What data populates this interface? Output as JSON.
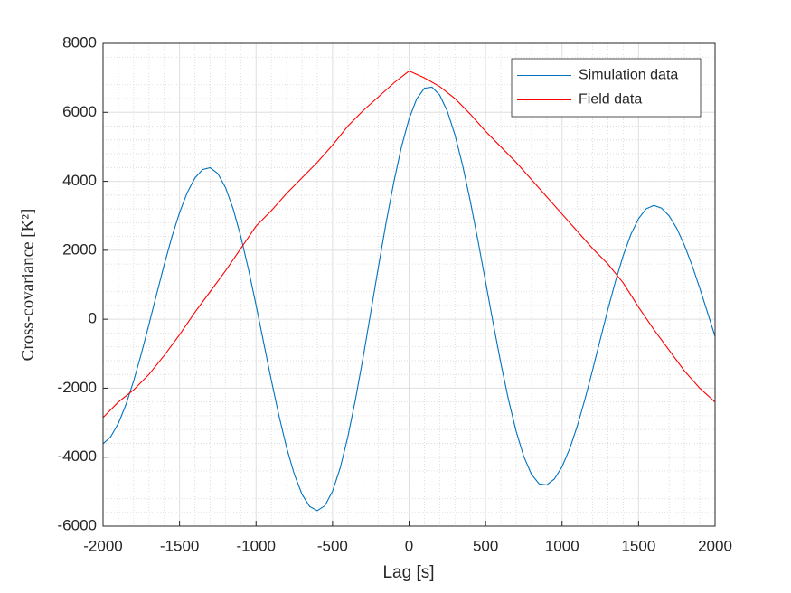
{
  "chart_data": {
    "type": "line",
    "xlabel": "Lag [s]",
    "ylabel": "Cross-covariance [K²]",
    "xlim": [
      -2000,
      2000
    ],
    "xticks": [
      -2000,
      -1500,
      -1000,
      -500,
      0,
      500,
      1000,
      1500,
      2000
    ],
    "ylim": [
      -6000,
      8000
    ],
    "yticks": [
      -6000,
      -4000,
      -2000,
      0,
      2000,
      4000,
      6000,
      8000
    ],
    "grid": true,
    "minor_grid": true,
    "legend": "northeast",
    "series": [
      {
        "name": "Simulation data",
        "color": "#0072bd",
        "x": [
          -2000,
          -1950,
          -1900,
          -1850,
          -1800,
          -1750,
          -1700,
          -1650,
          -1600,
          -1550,
          -1500,
          -1450,
          -1400,
          -1350,
          -1300,
          -1250,
          -1200,
          -1150,
          -1100,
          -1050,
          -1000,
          -950,
          -900,
          -850,
          -800,
          -750,
          -700,
          -650,
          -600,
          -550,
          -500,
          -450,
          -400,
          -350,
          -300,
          -250,
          -200,
          -150,
          -100,
          -50,
          0,
          50,
          100,
          150,
          200,
          250,
          300,
          350,
          400,
          450,
          500,
          550,
          600,
          650,
          700,
          750,
          800,
          850,
          900,
          950,
          1000,
          1050,
          1100,
          1150,
          1200,
          1250,
          1300,
          1350,
          1400,
          1450,
          1500,
          1550,
          1600,
          1650,
          1700,
          1750,
          1800,
          1850,
          1900,
          1950,
          2000
        ],
        "values": [
          -3615,
          -3407,
          -3020,
          -2471,
          -1788,
          -1002,
          -150,
          726,
          1585,
          2388,
          3091,
          3672,
          4094,
          4339,
          4395,
          4226,
          3822,
          3204,
          2403,
          1457,
          410,
          -685,
          -1774,
          -2805,
          -3731,
          -4496,
          -5075,
          -5429,
          -5550,
          -5408,
          -4989,
          -4311,
          -3409,
          -2321,
          -1100,
          205,
          1524,
          2800,
          3968,
          4993,
          5812,
          6389,
          6699,
          6730,
          6503,
          6034,
          5344,
          4463,
          3428,
          2286,
          1086,
          -119,
          -1277,
          -2337,
          -3252,
          -3985,
          -4498,
          -4774,
          -4805,
          -4632,
          -4276,
          -3753,
          -3089,
          -2314,
          -1465,
          -583,
          291,
          1114,
          1850,
          2461,
          2920,
          3204,
          3300,
          3223,
          2997,
          2631,
          2143,
          1557,
          900,
          203,
          -500
        ]
      },
      {
        "name": "Field data",
        "color": "#ff0000",
        "x": [
          -2000,
          -1900,
          -1800,
          -1700,
          -1600,
          -1500,
          -1400,
          -1300,
          -1200,
          -1100,
          -1000,
          -900,
          -800,
          -700,
          -600,
          -500,
          -400,
          -300,
          -200,
          -100,
          0,
          100,
          200,
          300,
          400,
          500,
          600,
          700,
          800,
          900,
          1000,
          1100,
          1200,
          1300,
          1400,
          1500,
          1600,
          1700,
          1800,
          1900,
          2000
        ],
        "values": [
          -2850,
          -2400,
          -2050,
          -1600,
          -1050,
          -450,
          200,
          800,
          1400,
          2050,
          2700,
          3150,
          3650,
          4100,
          4550,
          5050,
          5600,
          6050,
          6450,
          6850,
          7200,
          7000,
          6750,
          6400,
          5950,
          5450,
          5000,
          4550,
          4050,
          3550,
          3050,
          2550,
          2050,
          1600,
          1050,
          350,
          -300,
          -900,
          -1500,
          -2000,
          -2400
        ]
      }
    ]
  }
}
